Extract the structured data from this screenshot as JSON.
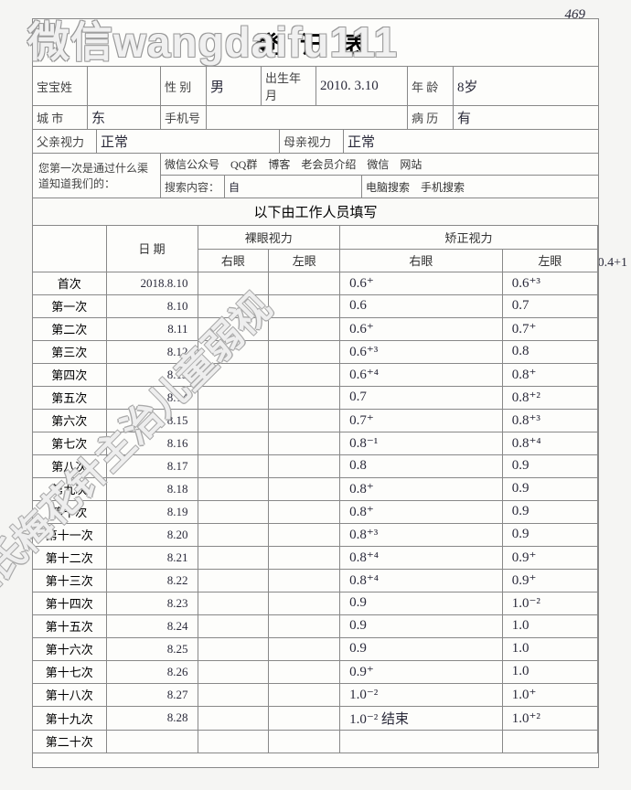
{
  "watermarks": {
    "top": "微信wangdaifu111",
    "diagonal": "王氏梅花针主治儿童弱视"
  },
  "corner_note": "469",
  "form_title": "登 记 表",
  "info": {
    "name_label": "宝宝姓",
    "name_value": "",
    "gender_label": "性 别",
    "gender_value": "男",
    "dob_label": "出生年月",
    "dob_value": "2010. 3.10",
    "age_label": "年 龄",
    "age_value": "8岁",
    "city_label": "城 市",
    "city_value": "东",
    "phone_label": "手机号",
    "phone_value": "",
    "history_label": "病 历",
    "history_value": "有",
    "father_label": "父亲视力",
    "father_value": "正常",
    "mother_label": "母亲视力",
    "mother_value": "正常",
    "channel_label": "您第一次是通过什么渠道知道我们的：",
    "channel_opts": "微信公众号　QQ群　博客　老会员介绍　微信　网站",
    "search_label": "搜索内容：",
    "search_content": "自",
    "search_kind": "电脑搜索　手机搜索"
  },
  "section_header": "以下由工作人员填写",
  "columns": {
    "date": "日 期",
    "naked": "裸眼视力",
    "corrected": "矫正视力",
    "right_eye": "右眼",
    "left_eye": "左眼"
  },
  "side_note": "0.4+1",
  "rows": [
    {
      "label": "首次",
      "date": "2018.8.10",
      "nr": "",
      "nl": "",
      "cr": "0.6⁺",
      "cl": "0.6⁺³"
    },
    {
      "label": "第一次",
      "date": "8.10",
      "nr": "",
      "nl": "",
      "cr": "0.6",
      "cl": "0.7"
    },
    {
      "label": "第二次",
      "date": "8.11",
      "nr": "",
      "nl": "",
      "cr": "0.6⁺",
      "cl": "0.7⁺"
    },
    {
      "label": "第三次",
      "date": "8.12",
      "nr": "",
      "nl": "",
      "cr": "0.6⁺³",
      "cl": "0.8"
    },
    {
      "label": "第四次",
      "date": "8.13",
      "nr": "",
      "nl": "",
      "cr": "0.6⁺⁴",
      "cl": "0.8⁺"
    },
    {
      "label": "第五次",
      "date": "8.14",
      "nr": "",
      "nl": "",
      "cr": "0.7",
      "cl": "0.8⁺²"
    },
    {
      "label": "第六次",
      "date": "8.15",
      "nr": "",
      "nl": "",
      "cr": "0.7⁺",
      "cl": "0.8⁺³"
    },
    {
      "label": "第七次",
      "date": "8.16",
      "nr": "",
      "nl": "",
      "cr": "0.8⁻¹",
      "cl": "0.8⁺⁴"
    },
    {
      "label": "第八次",
      "date": "8.17",
      "nr": "",
      "nl": "",
      "cr": "0.8",
      "cl": "0.9"
    },
    {
      "label": "第九次",
      "date": "8.18",
      "nr": "",
      "nl": "",
      "cr": "0.8⁺",
      "cl": "0.9"
    },
    {
      "label": "第十次",
      "date": "8.19",
      "nr": "",
      "nl": "",
      "cr": "0.8⁺",
      "cl": "0.9"
    },
    {
      "label": "第十一次",
      "date": "8.20",
      "nr": "",
      "nl": "",
      "cr": "0.8⁺³",
      "cl": "0.9"
    },
    {
      "label": "第十二次",
      "date": "8.21",
      "nr": "",
      "nl": "",
      "cr": "0.8⁺⁴",
      "cl": "0.9⁺"
    },
    {
      "label": "第十三次",
      "date": "8.22",
      "nr": "",
      "nl": "",
      "cr": "0.8⁺⁴",
      "cl": "0.9⁺"
    },
    {
      "label": "第十四次",
      "date": "8.23",
      "nr": "",
      "nl": "",
      "cr": "0.9",
      "cl": "1.0⁻²"
    },
    {
      "label": "第十五次",
      "date": "8.24",
      "nr": "",
      "nl": "",
      "cr": "0.9",
      "cl": "1.0"
    },
    {
      "label": "第十六次",
      "date": "8.25",
      "nr": "",
      "nl": "",
      "cr": "0.9",
      "cl": "1.0"
    },
    {
      "label": "第十七次",
      "date": "8.26",
      "nr": "",
      "nl": "",
      "cr": "0.9⁺",
      "cl": "1.0"
    },
    {
      "label": "第十八次",
      "date": "8.27",
      "nr": "",
      "nl": "",
      "cr": "1.0⁻²",
      "cl": "1.0⁺"
    },
    {
      "label": "第十九次",
      "date": "8.28",
      "nr": "",
      "nl": "",
      "cr": "1.0⁻² 结束",
      "cl": "1.0⁺²"
    },
    {
      "label": "第二十次",
      "date": "",
      "nr": "",
      "nl": "",
      "cr": "",
      "cl": ""
    }
  ]
}
